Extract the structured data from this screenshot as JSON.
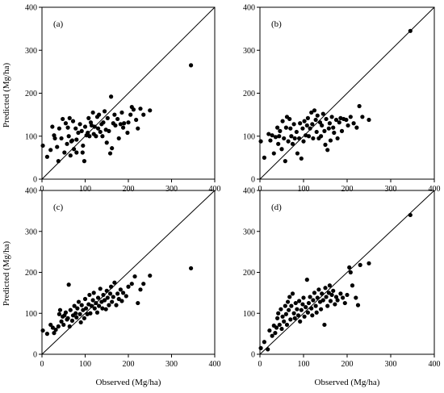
{
  "figure": {
    "ylabel": "Predicted (Mg/ha)",
    "xlabel": "Observed (Mg/ha)"
  },
  "chart_data": [
    {
      "type": "scatter",
      "panel_label": "(a)",
      "xlim": [
        0,
        400
      ],
      "ylim": [
        0,
        400
      ],
      "xticks": [
        "0",
        "100",
        "200",
        "300",
        "400"
      ],
      "yticks": [
        "0",
        "100",
        "200",
        "300",
        "400"
      ],
      "reference_line": "1:1",
      "grid": false,
      "points": [
        [
          2,
          78
        ],
        [
          12,
          52
        ],
        [
          20,
          68
        ],
        [
          24,
          122
        ],
        [
          28,
          102
        ],
        [
          30,
          95
        ],
        [
          35,
          75
        ],
        [
          40,
          118
        ],
        [
          38,
          42
        ],
        [
          45,
          95
        ],
        [
          48,
          140
        ],
        [
          52,
          62
        ],
        [
          55,
          130
        ],
        [
          58,
          82
        ],
        [
          60,
          120
        ],
        [
          62,
          100
        ],
        [
          64,
          142
        ],
        [
          66,
          55
        ],
        [
          68,
          88
        ],
        [
          70,
          90
        ],
        [
          72,
          135
        ],
        [
          74,
          70
        ],
        [
          78,
          118
        ],
        [
          80,
          92
        ],
        [
          80,
          62
        ],
        [
          84,
          108
        ],
        [
          88,
          128
        ],
        [
          92,
          112
        ],
        [
          94,
          62
        ],
        [
          95,
          78
        ],
        [
          98,
          42
        ],
        [
          100,
          122
        ],
        [
          103,
          102
        ],
        [
          106,
          108
        ],
        [
          108,
          142
        ],
        [
          110,
          100
        ],
        [
          113,
          132
        ],
        [
          115,
          125
        ],
        [
          118,
          155
        ],
        [
          120,
          105
        ],
        [
          122,
          122
        ],
        [
          125,
          100
        ],
        [
          128,
          145
        ],
        [
          130,
          118
        ],
        [
          132,
          150
        ],
        [
          135,
          110
        ],
        [
          138,
          128
        ],
        [
          140,
          100
        ],
        [
          142,
          132
        ],
        [
          145,
          158
        ],
        [
          148,
          115
        ],
        [
          150,
          85
        ],
        [
          152,
          142
        ],
        [
          155,
          112
        ],
        [
          158,
          60
        ],
        [
          160,
          192
        ],
        [
          162,
          72
        ],
        [
          165,
          130
        ],
        [
          168,
          150
        ],
        [
          170,
          125
        ],
        [
          175,
          140
        ],
        [
          178,
          95
        ],
        [
          182,
          128
        ],
        [
          185,
          155
        ],
        [
          188,
          120
        ],
        [
          190,
          130
        ],
        [
          198,
          108
        ],
        [
          200,
          132
        ],
        [
          205,
          150
        ],
        [
          208,
          168
        ],
        [
          212,
          162
        ],
        [
          218,
          138
        ],
        [
          222,
          118
        ],
        [
          228,
          164
        ],
        [
          235,
          150
        ],
        [
          250,
          160
        ],
        [
          345,
          265
        ]
      ]
    },
    {
      "type": "scatter",
      "panel_label": "(b)",
      "xlim": [
        0,
        400
      ],
      "ylim": [
        0,
        400
      ],
      "xticks": [
        "0",
        "100",
        "200",
        "300",
        "400"
      ],
      "yticks": [
        "0",
        "100",
        "200",
        "300",
        "400"
      ],
      "reference_line": "1:1",
      "grid": false,
      "points": [
        [
          2,
          88
        ],
        [
          10,
          50
        ],
        [
          20,
          105
        ],
        [
          24,
          90
        ],
        [
          28,
          102
        ],
        [
          32,
          60
        ],
        [
          36,
          98
        ],
        [
          40,
          120
        ],
        [
          42,
          82
        ],
        [
          44,
          100
        ],
        [
          46,
          112
        ],
        [
          50,
          70
        ],
        [
          52,
          135
        ],
        [
          55,
          95
        ],
        [
          58,
          42
        ],
        [
          60,
          120
        ],
        [
          62,
          145
        ],
        [
          65,
          88
        ],
        [
          68,
          140
        ],
        [
          70,
          118
        ],
        [
          72,
          100
        ],
        [
          75,
          82
        ],
        [
          78,
          128
        ],
        [
          80,
          95
        ],
        [
          84,
          110
        ],
        [
          86,
          60
        ],
        [
          90,
          95
        ],
        [
          92,
          130
        ],
        [
          95,
          48
        ],
        [
          98,
          118
        ],
        [
          100,
          88
        ],
        [
          102,
          135
        ],
        [
          105,
          102
        ],
        [
          108,
          125
        ],
        [
          110,
          142
        ],
        [
          112,
          100
        ],
        [
          115,
          118
        ],
        [
          118,
          155
        ],
        [
          120,
          128
        ],
        [
          122,
          95
        ],
        [
          125,
          160
        ],
        [
          128,
          138
        ],
        [
          130,
          110
        ],
        [
          132,
          148
        ],
        [
          135,
          95
        ],
        [
          138,
          132
        ],
        [
          140,
          100
        ],
        [
          142,
          125
        ],
        [
          145,
          152
        ],
        [
          148,
          112
        ],
        [
          150,
          80
        ],
        [
          152,
          140
        ],
        [
          155,
          68
        ],
        [
          158,
          118
        ],
        [
          160,
          130
        ],
        [
          162,
          90
        ],
        [
          165,
          145
        ],
        [
          168,
          120
        ],
        [
          170,
          108
        ],
        [
          175,
          138
        ],
        [
          178,
          95
        ],
        [
          182,
          132
        ],
        [
          185,
          142
        ],
        [
          188,
          112
        ],
        [
          192,
          140
        ],
        [
          198,
          138
        ],
        [
          202,
          125
        ],
        [
          208,
          145
        ],
        [
          215,
          130
        ],
        [
          222,
          120
        ],
        [
          228,
          170
        ],
        [
          235,
          145
        ],
        [
          250,
          138
        ],
        [
          345,
          345
        ]
      ]
    },
    {
      "type": "scatter",
      "panel_label": "(c)",
      "xlim": [
        0,
        400
      ],
      "ylim": [
        0,
        400
      ],
      "xticks": [
        "0",
        "100",
        "200",
        "300",
        "400"
      ],
      "yticks": [
        "0",
        "100",
        "200",
        "300",
        "400"
      ],
      "reference_line": "1:1",
      "grid": false,
      "points": [
        [
          2,
          58
        ],
        [
          12,
          50
        ],
        [
          20,
          72
        ],
        [
          25,
          65
        ],
        [
          28,
          52
        ],
        [
          32,
          60
        ],
        [
          38,
          68
        ],
        [
          40,
          98
        ],
        [
          42,
          108
        ],
        [
          45,
          80
        ],
        [
          48,
          92
        ],
        [
          50,
          72
        ],
        [
          52,
          95
        ],
        [
          55,
          102
        ],
        [
          58,
          85
        ],
        [
          60,
          88
        ],
        [
          62,
          170
        ],
        [
          64,
          68
        ],
        [
          66,
          108
        ],
        [
          70,
          82
        ],
        [
          72,
          95
        ],
        [
          75,
          118
        ],
        [
          78,
          100
        ],
        [
          80,
          90
        ],
        [
          82,
          112
        ],
        [
          85,
          128
        ],
        [
          88,
          98
        ],
        [
          90,
          78
        ],
        [
          92,
          120
        ],
        [
          95,
          108
        ],
        [
          98,
          88
        ],
        [
          100,
          135
        ],
        [
          102,
          112
        ],
        [
          105,
          98
        ],
        [
          108,
          122
        ],
        [
          110,
          145
        ],
        [
          112,
          100
        ],
        [
          115,
          118
        ],
        [
          118,
          132
        ],
        [
          120,
          150
        ],
        [
          122,
          112
        ],
        [
          125,
          125
        ],
        [
          128,
          102
        ],
        [
          130,
          138
        ],
        [
          132,
          118
        ],
        [
          135,
          160
        ],
        [
          138,
          128
        ],
        [
          140,
          112
        ],
        [
          142,
          145
        ],
        [
          145,
          132
        ],
        [
          148,
          110
        ],
        [
          150,
          155
        ],
        [
          152,
          138
        ],
        [
          155,
          120
        ],
        [
          158,
          148
        ],
        [
          160,
          165
        ],
        [
          162,
          128
        ],
        [
          165,
          140
        ],
        [
          168,
          175
        ],
        [
          172,
          120
        ],
        [
          175,
          148
        ],
        [
          178,
          135
        ],
        [
          182,
          158
        ],
        [
          185,
          130
        ],
        [
          188,
          150
        ],
        [
          195,
          142
        ],
        [
          200,
          165
        ],
        [
          208,
          172
        ],
        [
          215,
          190
        ],
        [
          222,
          125
        ],
        [
          228,
          158
        ],
        [
          235,
          172
        ],
        [
          250,
          192
        ],
        [
          345,
          210
        ]
      ]
    },
    {
      "type": "scatter",
      "panel_label": "(d)",
      "xlim": [
        0,
        400
      ],
      "ylim": [
        0,
        400
      ],
      "xticks": [
        "0",
        "100",
        "200",
        "300",
        "400"
      ],
      "yticks": [
        "0",
        "100",
        "200",
        "300",
        "400"
      ],
      "reference_line": "1:1",
      "grid": false,
      "points": [
        [
          2,
          15
        ],
        [
          10,
          30
        ],
        [
          18,
          12
        ],
        [
          22,
          58
        ],
        [
          28,
          45
        ],
        [
          32,
          70
        ],
        [
          35,
          52
        ],
        [
          38,
          65
        ],
        [
          40,
          88
        ],
        [
          42,
          100
        ],
        [
          45,
          72
        ],
        [
          48,
          110
        ],
        [
          50,
          62
        ],
        [
          52,
          92
        ],
        [
          55,
          80
        ],
        [
          58,
          118
        ],
        [
          60,
          98
        ],
        [
          62,
          72
        ],
        [
          64,
          128
        ],
        [
          66,
          108
        ],
        [
          68,
          140
        ],
        [
          70,
          85
        ],
        [
          72,
          118
        ],
        [
          75,
          148
        ],
        [
          78,
          100
        ],
        [
          80,
          88
        ],
        [
          82,
          125
        ],
        [
          85,
          110
        ],
        [
          88,
          95
        ],
        [
          90,
          130
        ],
        [
          92,
          80
        ],
        [
          95,
          108
        ],
        [
          98,
          122
        ],
        [
          100,
          138
        ],
        [
          102,
          92
        ],
        [
          105,
          115
        ],
        [
          108,
          182
        ],
        [
          110,
          102
        ],
        [
          112,
          125
        ],
        [
          115,
          140
        ],
        [
          118,
          112
        ],
        [
          120,
          95
        ],
        [
          122,
          132
        ],
        [
          125,
          150
        ],
        [
          128,
          118
        ],
        [
          130,
          102
        ],
        [
          132,
          138
        ],
        [
          135,
          158
        ],
        [
          138,
          128
        ],
        [
          140,
          110
        ],
        [
          142,
          148
        ],
        [
          145,
          132
        ],
        [
          148,
          72
        ],
        [
          150,
          162
        ],
        [
          152,
          140
        ],
        [
          155,
          118
        ],
        [
          158,
          150
        ],
        [
          160,
          168
        ],
        [
          162,
          130
        ],
        [
          165,
          145
        ],
        [
          168,
          155
        ],
        [
          172,
          122
        ],
        [
          175,
          140
        ],
        [
          178,
          132
        ],
        [
          185,
          148
        ],
        [
          190,
          138
        ],
        [
          195,
          125
        ],
        [
          200,
          145
        ],
        [
          205,
          212
        ],
        [
          208,
          200
        ],
        [
          212,
          168
        ],
        [
          220,
          138
        ],
        [
          225,
          120
        ],
        [
          230,
          218
        ],
        [
          250,
          222
        ],
        [
          345,
          340
        ]
      ]
    }
  ]
}
